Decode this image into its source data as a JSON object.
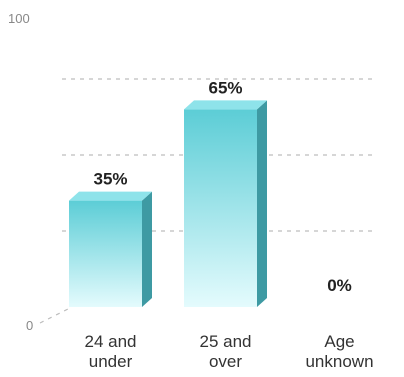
{
  "chart_data": {
    "type": "bar",
    "categories": [
      [
        "24 and",
        "under"
      ],
      [
        "25 and",
        "over"
      ],
      [
        "Age",
        "unknown"
      ]
    ],
    "values": [
      35,
      65,
      0
    ],
    "value_labels": [
      "35%",
      "65%",
      "0%"
    ],
    "ylim": [
      0,
      100
    ],
    "yticks": [
      "0",
      "100"
    ],
    "gridlines": [
      25,
      50,
      75
    ],
    "grid": true,
    "colors": {
      "bar_top": "#5ccdd6",
      "bar_bottom": "#e4fbfd",
      "bar_side": "#3e9aa3",
      "bar_cap": "#8ee3ea"
    }
  }
}
